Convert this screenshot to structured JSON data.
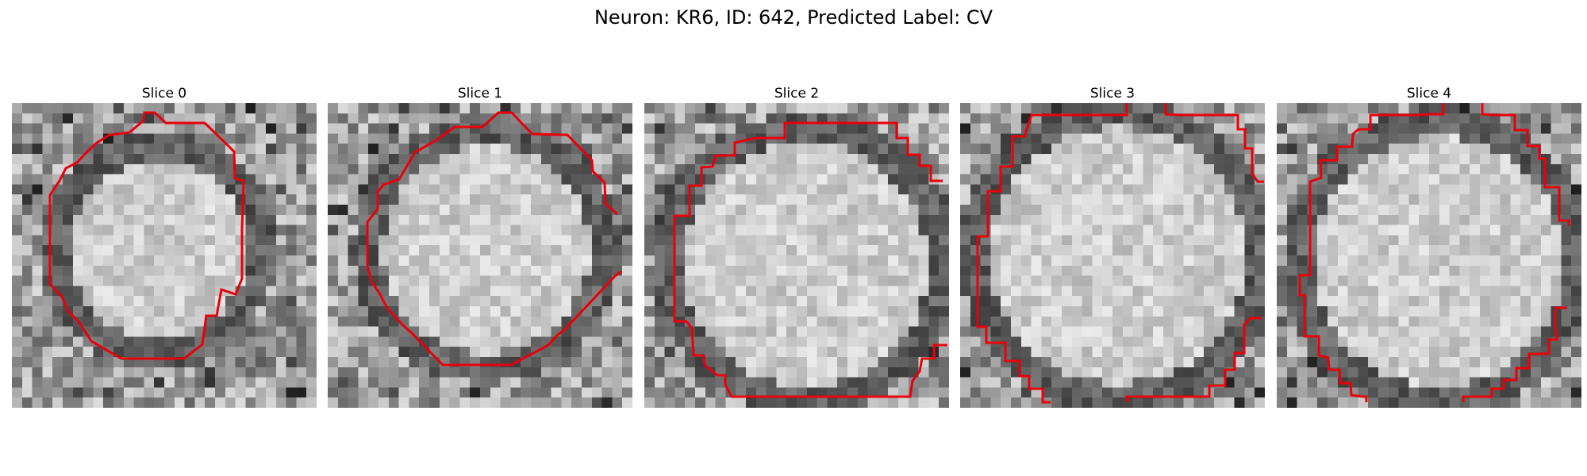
{
  "figure": {
    "title": "Neuron: KR6, ID: 642, Predicted Label: CV"
  },
  "contour_color": "#e8000b",
  "panels": [
    {
      "title": "Slice 0",
      "image": "grayscale EM slice of a round cell body surrounded by a dark membrane ring",
      "contour": "red octagonal outline traced around the cell body"
    },
    {
      "title": "Slice 1",
      "image": "grayscale EM slice of a round cell body surrounded by a dark membrane ring",
      "contour": "red octagonal outline traced around the cell body, open on the right side"
    },
    {
      "title": "Slice 2",
      "image": "grayscale EM slice of a round cell body surrounded by a dark membrane ring",
      "contour": "red stair-stepped outline around the cell body, open at the top-right and right"
    },
    {
      "title": "Slice 3",
      "image": "grayscale EM slice of a round cell body surrounded by a dark membrane ring",
      "contour": "red stair-stepped outline around the cell body, open at the top, right and bottom"
    },
    {
      "title": "Slice 4",
      "image": "grayscale EM slice of a round cell body surrounded by a dark membrane ring",
      "contour": "red stair-stepped outline around the cell body, open at the top and bottom"
    }
  ]
}
